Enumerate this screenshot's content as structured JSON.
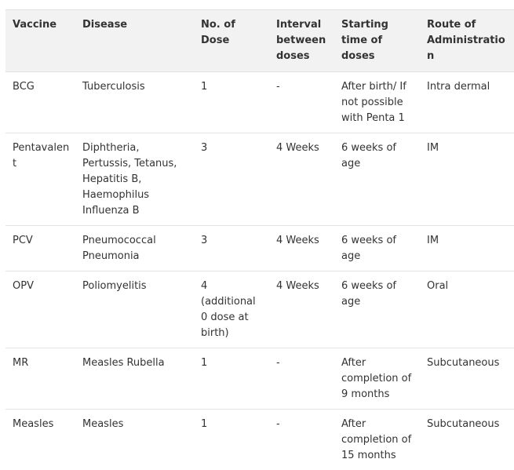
{
  "table": {
    "headers": [
      "Vaccine",
      "Disease",
      "No. of Dose",
      "Interval between doses",
      "Starting time of doses",
      "Route of Administration"
    ],
    "rows": [
      [
        "BCG",
        "Tuberculosis",
        "1",
        "-",
        "After birth/ If not possible with Penta 1",
        "Intra dermal"
      ],
      [
        "Pentavalent",
        "Diphtheria, Pertussis, Tetanus, Hepatitis B, Haemophilus Influenza B",
        "3",
        "4 Weeks",
        "6 weeks of age",
        "IM"
      ],
      [
        "PCV",
        "Pneumococcal Pneumonia",
        "3",
        "4 Weeks",
        "6 weeks of age",
        "IM"
      ],
      [
        "OPV",
        "Poliomyelitis",
        "4 (additional 0 dose at birth)",
        "4 Weeks",
        "6 weeks of age",
        "Oral"
      ],
      [
        "MR",
        "Measles Rubella",
        "1",
        "-",
        "After completion of 9 months",
        "Subcutaneous"
      ],
      [
        "Measles",
        "Measles",
        "1",
        "-",
        "After completion of 15 months",
        "Subcutaneous"
      ]
    ]
  }
}
